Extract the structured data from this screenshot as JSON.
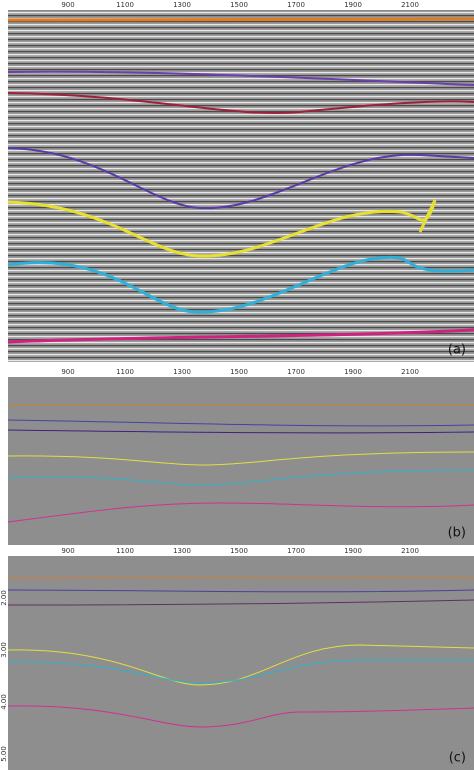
{
  "panels": [
    {
      "label": "(a)",
      "top_ticks": [
        "900",
        "1100",
        "1300",
        "1500",
        "1700",
        "1900",
        "2100"
      ]
    },
    {
      "label": "(b)",
      "top_ticks": [
        "900",
        "1100",
        "1300",
        "1500",
        "1700",
        "1900",
        "2100"
      ]
    },
    {
      "label": "(c)",
      "top_ticks": [
        "900",
        "1100",
        "1300",
        "1500",
        "1700",
        "1900",
        "2100"
      ],
      "left_ticks": [
        "2.00",
        "3.00",
        "4.00",
        "5.00"
      ]
    }
  ]
}
